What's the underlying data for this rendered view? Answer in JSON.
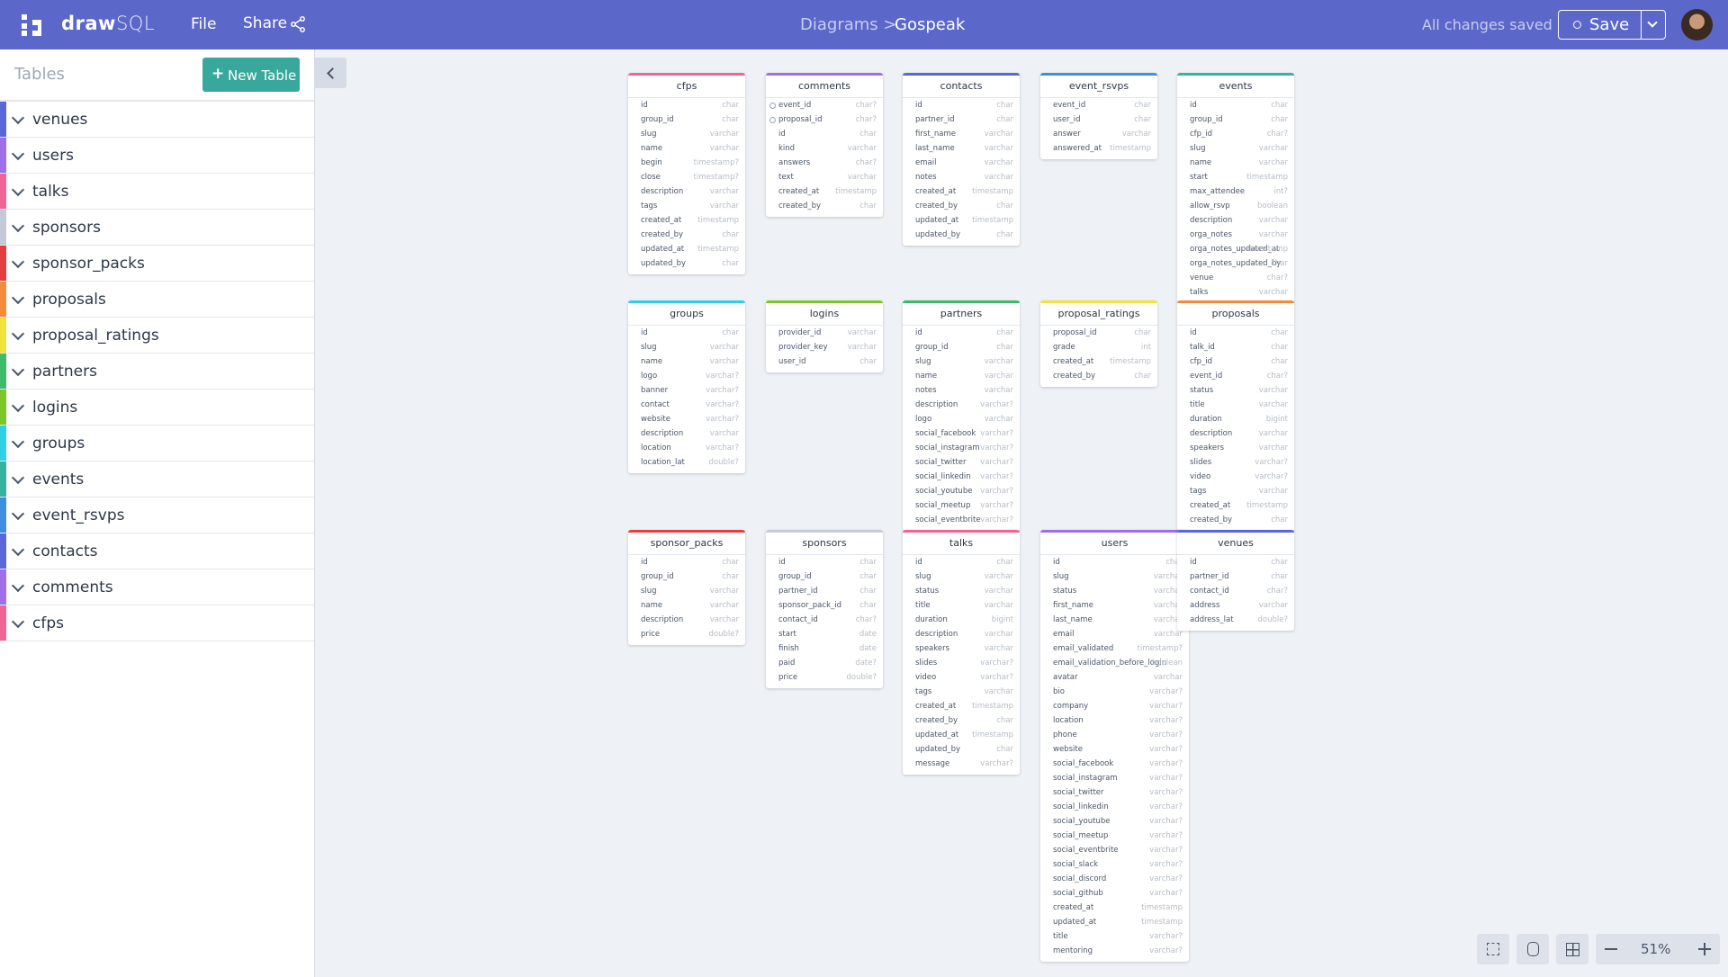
{
  "header": {
    "logo_bold": "draw",
    "logo_light": "SQL",
    "menu": [
      "File",
      "Share"
    ],
    "breadcrumb": "Diagrams >",
    "diagram_name": "Gospeak",
    "status": "All changes saved",
    "save": "Save"
  },
  "sidebar": {
    "title": "Tables",
    "new_table": "New Table"
  },
  "zoom": "51%",
  "tables": [
    {
      "name": "cfps",
      "color": "#f06595",
      "fields": [
        [
          "id",
          "char"
        ],
        [
          "group_id",
          "char"
        ],
        [
          "slug",
          "varchar"
        ],
        [
          "name",
          "varchar"
        ],
        [
          "begin",
          "timestamp?"
        ],
        [
          "close",
          "timestamp?"
        ],
        [
          "description",
          "varchar"
        ],
        [
          "tags",
          "varchar"
        ],
        [
          "created_at",
          "timestamp"
        ],
        [
          "created_by",
          "char"
        ],
        [
          "updated_at",
          "timestamp"
        ],
        [
          "updated_by",
          "char"
        ]
      ]
    },
    {
      "name": "comments",
      "color": "#9f6ee8",
      "fields": [
        [
          "event_id",
          "char?"
        ],
        [
          "proposal_id",
          "char?"
        ],
        [
          "id",
          "char"
        ],
        [
          "kind",
          "varchar"
        ],
        [
          "answers",
          "char?"
        ],
        [
          "text",
          "varchar"
        ],
        [
          "created_at",
          "timestamp"
        ],
        [
          "created_by",
          "char"
        ]
      ],
      "key_fields": [
        0,
        1
      ]
    },
    {
      "name": "contacts",
      "color": "#5a67d8",
      "fields": [
        [
          "id",
          "char"
        ],
        [
          "partner_id",
          "char"
        ],
        [
          "first_name",
          "varchar"
        ],
        [
          "last_name",
          "varchar"
        ],
        [
          "email",
          "varchar"
        ],
        [
          "notes",
          "varchar"
        ],
        [
          "created_at",
          "timestamp"
        ],
        [
          "created_by",
          "char"
        ],
        [
          "updated_at",
          "timestamp"
        ],
        [
          "updated_by",
          "char"
        ]
      ]
    },
    {
      "name": "event_rsvps",
      "color": "#3f8fe0",
      "fields": [
        [
          "event_id",
          "char"
        ],
        [
          "user_id",
          "char"
        ],
        [
          "answer",
          "varchar"
        ],
        [
          "answered_at",
          "timestamp"
        ]
      ]
    },
    {
      "name": "events",
      "color": "#38b2a0",
      "fields": [
        [
          "id",
          "char"
        ],
        [
          "group_id",
          "char"
        ],
        [
          "cfp_id",
          "char?"
        ],
        [
          "slug",
          "varchar"
        ],
        [
          "name",
          "varchar"
        ],
        [
          "start",
          "timestamp"
        ],
        [
          "max_attendee",
          "int?"
        ],
        [
          "allow_rsvp",
          "boolean"
        ],
        [
          "description",
          "varchar"
        ],
        [
          "orga_notes",
          "varchar"
        ],
        [
          "orga_notes_updated_at",
          "timestamp"
        ],
        [
          "orga_notes_updated_by",
          "char"
        ],
        [
          "venue",
          "char?"
        ],
        [
          "talks",
          "varchar"
        ]
      ]
    },
    {
      "name": "groups",
      "color": "#2fd0e6",
      "fields": [
        [
          "id",
          "char"
        ],
        [
          "slug",
          "varchar"
        ],
        [
          "name",
          "varchar"
        ],
        [
          "logo",
          "varchar?"
        ],
        [
          "banner",
          "varchar?"
        ],
        [
          "contact",
          "varchar?"
        ],
        [
          "website",
          "varchar?"
        ],
        [
          "description",
          "varchar"
        ],
        [
          "location",
          "varchar?"
        ],
        [
          "location_lat",
          "double?"
        ]
      ]
    },
    {
      "name": "logins",
      "color": "#7cc629",
      "fields": [
        [
          "provider_id",
          "varchar"
        ],
        [
          "provider_key",
          "varchar"
        ],
        [
          "user_id",
          "char"
        ]
      ]
    },
    {
      "name": "partners",
      "color": "#3fb96a",
      "fields": [
        [
          "id",
          "char"
        ],
        [
          "group_id",
          "char"
        ],
        [
          "slug",
          "varchar"
        ],
        [
          "name",
          "varchar"
        ],
        [
          "notes",
          "varchar"
        ],
        [
          "description",
          "varchar?"
        ],
        [
          "logo",
          "varchar"
        ],
        [
          "social_facebook",
          "varchar?"
        ],
        [
          "social_instagram",
          "varchar?"
        ],
        [
          "social_twitter",
          "varchar?"
        ],
        [
          "social_linkedin",
          "varchar?"
        ],
        [
          "social_youtube",
          "varchar?"
        ],
        [
          "social_meetup",
          "varchar?"
        ],
        [
          "social_eventbrite",
          "varchar?"
        ]
      ]
    },
    {
      "name": "proposal_ratings",
      "color": "#f2e23c",
      "fields": [
        [
          "proposal_id",
          "char"
        ],
        [
          "grade",
          "int"
        ],
        [
          "created_at",
          "timestamp"
        ],
        [
          "created_by",
          "char"
        ]
      ]
    },
    {
      "name": "proposals",
      "color": "#f08c3c",
      "fields": [
        [
          "id",
          "char"
        ],
        [
          "talk_id",
          "char"
        ],
        [
          "cfp_id",
          "char"
        ],
        [
          "event_id",
          "char?"
        ],
        [
          "status",
          "varchar"
        ],
        [
          "title",
          "varchar"
        ],
        [
          "duration",
          "bigint"
        ],
        [
          "description",
          "varchar"
        ],
        [
          "speakers",
          "varchar"
        ],
        [
          "slides",
          "varchar?"
        ],
        [
          "video",
          "varchar?"
        ],
        [
          "tags",
          "varchar"
        ],
        [
          "created_at",
          "timestamp"
        ],
        [
          "created_by",
          "char"
        ]
      ]
    },
    {
      "name": "sponsor_packs",
      "color": "#e53e3e",
      "fields": [
        [
          "id",
          "char"
        ],
        [
          "group_id",
          "char"
        ],
        [
          "slug",
          "varchar"
        ],
        [
          "name",
          "varchar"
        ],
        [
          "description",
          "varchar"
        ],
        [
          "price",
          "double?"
        ]
      ]
    },
    {
      "name": "sponsors",
      "color": "#c5cbd6",
      "fields": [
        [
          "id",
          "char"
        ],
        [
          "group_id",
          "char"
        ],
        [
          "partner_id",
          "char"
        ],
        [
          "sponsor_pack_id",
          "char"
        ],
        [
          "contact_id",
          "char?"
        ],
        [
          "start",
          "date"
        ],
        [
          "finish",
          "date"
        ],
        [
          "paid",
          "date?"
        ],
        [
          "price",
          "double?"
        ]
      ]
    },
    {
      "name": "talks",
      "color": "#f06595",
      "fields": [
        [
          "id",
          "char"
        ],
        [
          "slug",
          "varchar"
        ],
        [
          "status",
          "varchar"
        ],
        [
          "title",
          "varchar"
        ],
        [
          "duration",
          "bigint"
        ],
        [
          "description",
          "varchar"
        ],
        [
          "speakers",
          "varchar"
        ],
        [
          "slides",
          "varchar?"
        ],
        [
          "video",
          "varchar?"
        ],
        [
          "tags",
          "varchar"
        ],
        [
          "created_at",
          "timestamp"
        ],
        [
          "created_by",
          "char"
        ],
        [
          "updated_at",
          "timestamp"
        ],
        [
          "updated_by",
          "char"
        ],
        [
          "message",
          "varchar?"
        ]
      ]
    },
    {
      "name": "users",
      "color": "#9f6ee8",
      "fields": [
        [
          "id",
          "char"
        ],
        [
          "slug",
          "varchar"
        ],
        [
          "status",
          "varchar"
        ],
        [
          "first_name",
          "varchar"
        ],
        [
          "last_name",
          "varchar"
        ],
        [
          "email",
          "varchar"
        ],
        [
          "email_validated",
          "timestamp?"
        ],
        [
          "email_validation_before_login",
          "boolean"
        ],
        [
          "avatar",
          "varchar"
        ],
        [
          "bio",
          "varchar?"
        ],
        [
          "company",
          "varchar?"
        ],
        [
          "location",
          "varchar?"
        ],
        [
          "phone",
          "varchar?"
        ],
        [
          "website",
          "varchar?"
        ],
        [
          "social_facebook",
          "varchar?"
        ],
        [
          "social_instagram",
          "varchar?"
        ],
        [
          "social_twitter",
          "varchar?"
        ],
        [
          "social_linkedin",
          "varchar?"
        ],
        [
          "social_youtube",
          "varchar?"
        ],
        [
          "social_meetup",
          "varchar?"
        ],
        [
          "social_eventbrite",
          "varchar?"
        ],
        [
          "social_slack",
          "varchar?"
        ],
        [
          "social_discord",
          "varchar?"
        ],
        [
          "social_github",
          "varchar?"
        ],
        [
          "created_at",
          "timestamp"
        ],
        [
          "updated_at",
          "timestamp"
        ],
        [
          "title",
          "varchar?"
        ],
        [
          "mentoring",
          "varchar?"
        ]
      ]
    },
    {
      "name": "venues",
      "color": "#5a67d8",
      "fields": [
        [
          "id",
          "char"
        ],
        [
          "partner_id",
          "char"
        ],
        [
          "contact_id",
          "char?"
        ],
        [
          "address",
          "varchar"
        ],
        [
          "address_lat",
          "double?"
        ]
      ]
    }
  ]
}
